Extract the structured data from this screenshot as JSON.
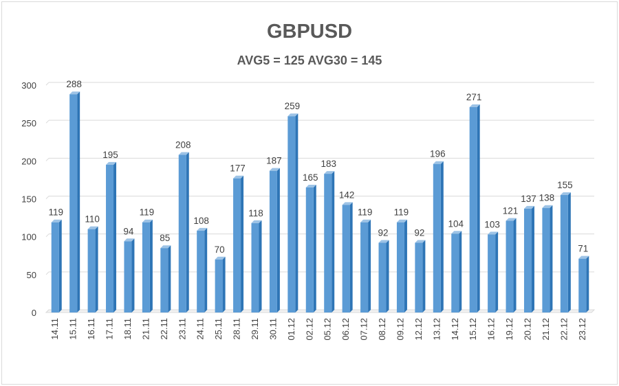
{
  "chart_data": {
    "type": "bar",
    "title": "GBPUSD",
    "subtitle": "AVG5 = 125 AVG30 = 145",
    "categories": [
      "14.11",
      "15.11",
      "16.11",
      "17.11",
      "18.11",
      "21.11",
      "22.11",
      "23.11",
      "24.11",
      "25.11",
      "28.11",
      "29.11",
      "30.11",
      "01.12",
      "02.12",
      "05.12",
      "06.12",
      "07.12",
      "08.12",
      "09.12",
      "12.12",
      "13.12",
      "14.12",
      "15.12",
      "16.12",
      "19.12",
      "20.12",
      "21.12",
      "22.12",
      "23.12"
    ],
    "values": [
      119,
      288,
      110,
      195,
      94,
      119,
      85,
      208,
      108,
      70,
      177,
      118,
      187,
      259,
      165,
      183,
      142,
      119,
      92,
      119,
      92,
      196,
      104,
      271,
      103,
      121,
      137,
      138,
      155,
      71
    ],
    "ylim": [
      0,
      300
    ],
    "yticks": [
      0,
      50,
      100,
      150,
      200,
      250,
      300
    ],
    "grid": true,
    "legend": "none",
    "colors": {
      "bar": "#5b9bd5",
      "bar_dark": "#2e75b6",
      "bar_light": "#9dc3e6",
      "grid": "#d9d9d9",
      "text": "#404040"
    }
  }
}
